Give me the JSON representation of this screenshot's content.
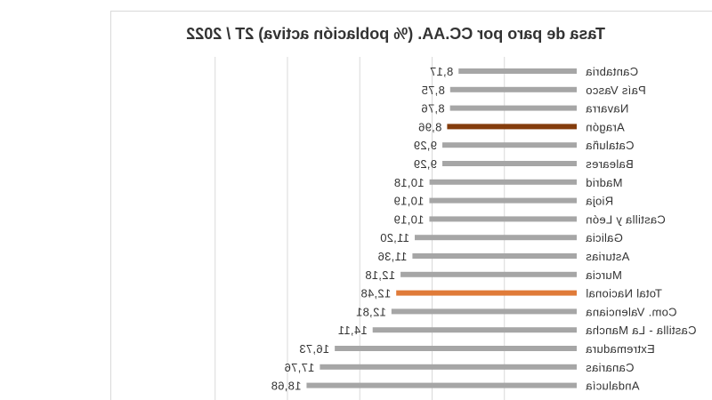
{
  "chart_data": {
    "type": "bar",
    "orientation": "horizontal",
    "title": "Tasa de paro por CC.AA. (% población activa) 2T / 2022",
    "categories": [
      "Cantabria",
      "País Vasco",
      "Navarra",
      "Aragón",
      "Cataluña",
      "Baleares",
      "Madrid",
      "Rioja",
      "Castilla y León",
      "Galicia",
      "Asturias",
      "Murcia",
      "Total Nacional",
      "Com. Valenciana",
      "Castilla - La Mancha",
      "Extremadura",
      "Canarias",
      "Andalucía"
    ],
    "value_labels": [
      "8,17",
      "8,75",
      "8,76",
      "8,96",
      "9,29",
      "9,29",
      "10,18",
      "10,19",
      "10,19",
      "11,20",
      "11,36",
      "12,18",
      "12,48",
      "12,81",
      "14,11",
      "16,73",
      "17,76",
      "18,68"
    ],
    "values": [
      8.17,
      8.75,
      8.76,
      8.96,
      9.29,
      9.29,
      10.18,
      10.19,
      10.19,
      11.2,
      11.36,
      12.18,
      12.48,
      12.81,
      14.11,
      16.73,
      17.76,
      18.68
    ],
    "xlim": [
      0,
      25
    ],
    "grid": true,
    "colors": {
      "default": "#a6a6a6",
      "highlight": {
        "Aragón": "#843c0c",
        "Total Nacional": "#e07b39"
      },
      "gridline": "#d9d9d9",
      "text": "#333333"
    }
  }
}
